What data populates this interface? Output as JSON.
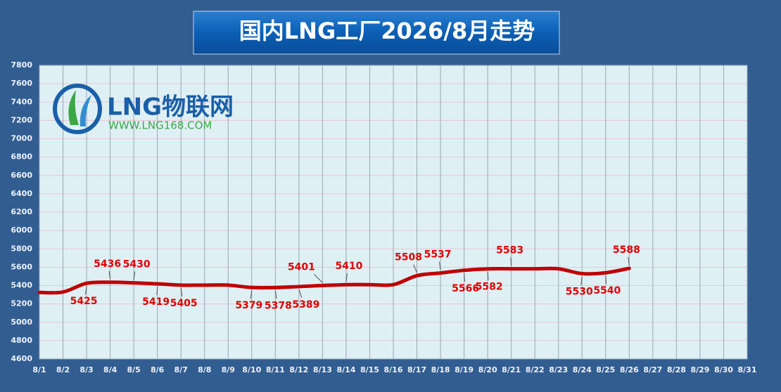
{
  "chart_data": {
    "type": "line",
    "title": "国内LNG工厂2026/8月走势",
    "logo": {
      "name": "LNG物联网",
      "url": "WWW.LNG168.COM"
    },
    "categories": [
      "8/1",
      "8/2",
      "8/3",
      "8/4",
      "8/5",
      "8/6",
      "8/7",
      "8/8",
      "8/9",
      "8/10",
      "8/11",
      "8/12",
      "8/13",
      "8/14",
      "8/15",
      "8/16",
      "8/17",
      "8/18",
      "8/19",
      "8/20",
      "8/21",
      "8/22",
      "8/23",
      "8/24",
      "8/25",
      "8/26",
      "8/27",
      "8/28",
      "8/29",
      "8/30",
      "8/31"
    ],
    "series": [
      {
        "color": "#c00000",
        "values": [
          5325,
          5330,
          5425,
          5436,
          5430,
          5419,
          5405,
          5405,
          5405,
          5379,
          5378,
          5389,
          5401,
          5410,
          5410,
          5410,
          5508,
          5537,
          5566,
          5582,
          5583,
          5583,
          5583,
          5530,
          5540,
          5588,
          null,
          null,
          null,
          null,
          null
        ],
        "value_labels": [
          null,
          null,
          "5425",
          "5436",
          "5430",
          "5419",
          "5405",
          null,
          null,
          "5379",
          "5378",
          "5389",
          "5401",
          "5410",
          null,
          null,
          "5508",
          "5537",
          "5566",
          "5582",
          "5583",
          null,
          null,
          "5530",
          "5540",
          "5588",
          null,
          null,
          null,
          null,
          null
        ]
      }
    ],
    "ylim": [
      4600,
      7800
    ],
    "yticks": [
      4600,
      4800,
      5000,
      5200,
      5400,
      5600,
      5800,
      6000,
      6200,
      6400,
      6600,
      6800,
      7000,
      7200,
      7400,
      7600,
      7800
    ],
    "grid": true
  }
}
